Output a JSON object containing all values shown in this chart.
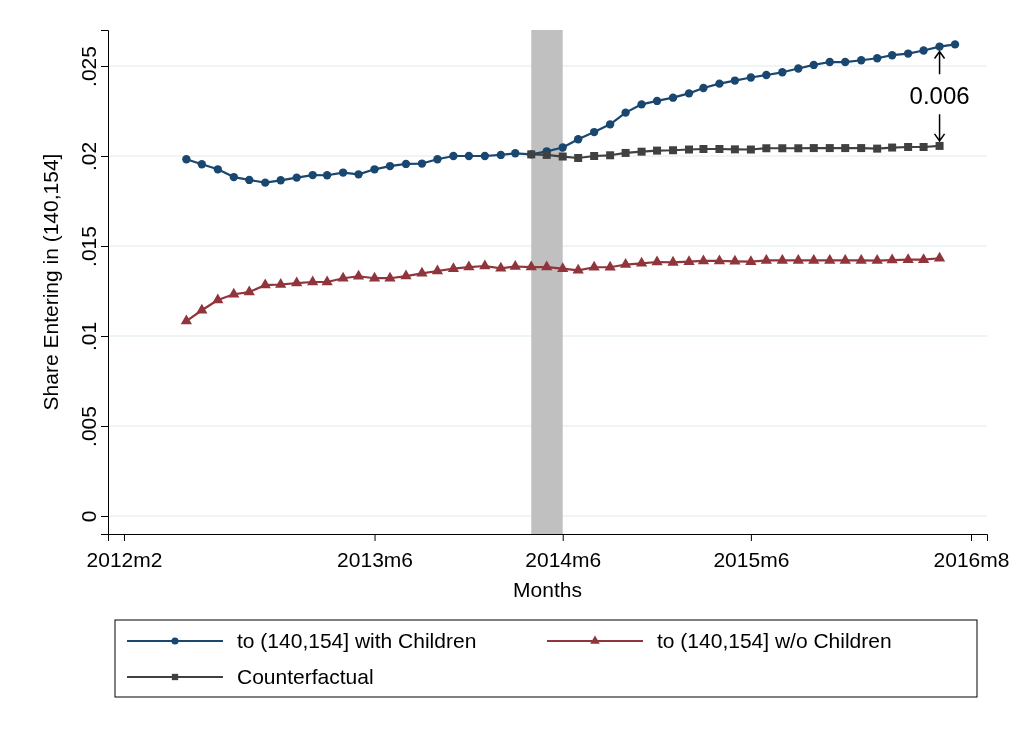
{
  "chart_data": {
    "type": "line",
    "xlabel": "Months",
    "ylabel": "Share Entering in (140,154]",
    "xlim": [
      "2012-01",
      "2016-09"
    ],
    "ylim": [
      -0.001,
      0.027
    ],
    "xticks": [
      {
        "value": "2012-02",
        "label": "2012m2"
      },
      {
        "value": "2013-06",
        "label": "2013m6"
      },
      {
        "value": "2014-06",
        "label": "2014m6"
      },
      {
        "value": "2015-06",
        "label": "2015m6"
      },
      {
        "value": "2016-08",
        "label": "2016m8"
      }
    ],
    "yticks": [
      {
        "value": 0,
        "label": "0"
      },
      {
        "value": 0.005,
        "label": ".005"
      },
      {
        "value": 0.01,
        "label": ".01"
      },
      {
        "value": 0.015,
        "label": ".015"
      },
      {
        "value": 0.02,
        "label": ".02"
      },
      {
        "value": 0.025,
        "label": ".025"
      }
    ],
    "grid": "y",
    "legend": "bottom",
    "bands": [
      {
        "axis": "x",
        "from": "2014-04",
        "to": "2014-06",
        "color": "#c0c0c0"
      }
    ],
    "annotations": [
      "0.006"
    ],
    "series": [
      {
        "name": "to (140,154] with Children",
        "color": "#1a476f",
        "marker": "circle",
        "x": [
          "2012-06",
          "2012-07",
          "2012-08",
          "2012-09",
          "2012-10",
          "2012-11",
          "2012-12",
          "2013-01",
          "2013-02",
          "2013-03",
          "2013-04",
          "2013-05",
          "2013-06",
          "2013-07",
          "2013-08",
          "2013-09",
          "2013-10",
          "2013-11",
          "2013-12",
          "2014-01",
          "2014-02",
          "2014-03",
          "2014-04",
          "2014-05",
          "2014-06",
          "2014-07",
          "2014-08",
          "2014-09",
          "2014-10",
          "2014-11",
          "2014-12",
          "2015-01",
          "2015-02",
          "2015-03",
          "2015-04",
          "2015-05",
          "2015-06",
          "2015-07",
          "2015-08",
          "2015-09",
          "2015-10",
          "2015-11",
          "2015-12",
          "2016-01",
          "2016-02",
          "2016-03",
          "2016-04",
          "2016-05",
          "2016-06",
          "2016-07"
        ],
        "values": [
          0.01982,
          0.01954,
          0.01926,
          0.01883,
          0.01867,
          0.01852,
          0.01865,
          0.0188,
          0.01894,
          0.01893,
          0.01908,
          0.01898,
          0.01926,
          0.01944,
          0.01956,
          0.01958,
          0.01982,
          0.02,
          0.02,
          0.02,
          0.02006,
          0.02015,
          0.02009,
          0.02026,
          0.02047,
          0.02093,
          0.02133,
          0.02176,
          0.02241,
          0.02287,
          0.02306,
          0.02324,
          0.02348,
          0.02378,
          0.02402,
          0.02419,
          0.02436,
          0.0245,
          0.02465,
          0.02486,
          0.02506,
          0.02522,
          0.02522,
          0.02532,
          0.02543,
          0.0256,
          0.02569,
          0.02586,
          0.02608,
          0.0262
        ]
      },
      {
        "name": "to (140,154] w/o Children",
        "color": "#90353b",
        "marker": "triangle",
        "x": [
          "2012-06",
          "2012-07",
          "2012-08",
          "2012-09",
          "2012-10",
          "2012-11",
          "2012-12",
          "2013-01",
          "2013-02",
          "2013-03",
          "2013-04",
          "2013-05",
          "2013-06",
          "2013-07",
          "2013-08",
          "2013-09",
          "2013-10",
          "2013-11",
          "2013-12",
          "2014-01",
          "2014-02",
          "2014-03",
          "2014-04",
          "2014-05",
          "2014-06",
          "2014-07",
          "2014-08",
          "2014-09",
          "2014-10",
          "2014-11",
          "2014-12",
          "2015-01",
          "2015-02",
          "2015-03",
          "2015-04",
          "2015-05",
          "2015-06",
          "2015-07",
          "2015-08",
          "2015-09",
          "2015-10",
          "2015-11",
          "2015-12",
          "2016-01",
          "2016-02",
          "2016-03",
          "2016-04",
          "2016-05",
          "2016-06"
        ],
        "values": [
          0.01083,
          0.01143,
          0.012,
          0.01232,
          0.01244,
          0.01283,
          0.01286,
          0.01294,
          0.013,
          0.013,
          0.01321,
          0.01332,
          0.01321,
          0.01321,
          0.01333,
          0.01348,
          0.01361,
          0.01374,
          0.01383,
          0.01389,
          0.01376,
          0.01386,
          0.01383,
          0.01383,
          0.01374,
          0.01365,
          0.01382,
          0.01382,
          0.01397,
          0.01404,
          0.01411,
          0.01409,
          0.01413,
          0.01417,
          0.01417,
          0.01415,
          0.01413,
          0.0142,
          0.0142,
          0.0142,
          0.0142,
          0.0142,
          0.0142,
          0.0142,
          0.01419,
          0.01422,
          0.01424,
          0.01424,
          0.01432
        ]
      },
      {
        "name": "Counterfactual",
        "color": "#404040",
        "marker": "square",
        "x": [
          "2014-04",
          "2014-05",
          "2014-06",
          "2014-07",
          "2014-08",
          "2014-09",
          "2014-10",
          "2014-11",
          "2014-12",
          "2015-01",
          "2015-02",
          "2015-03",
          "2015-04",
          "2015-05",
          "2015-06",
          "2015-07",
          "2015-08",
          "2015-09",
          "2015-10",
          "2015-11",
          "2015-12",
          "2016-01",
          "2016-02",
          "2016-03",
          "2016-04",
          "2016-05",
          "2016-06"
        ],
        "values": [
          0.02009,
          0.02006,
          0.01997,
          0.01989,
          0.02,
          0.02004,
          0.02017,
          0.02024,
          0.0203,
          0.02032,
          0.02036,
          0.02039,
          0.02039,
          0.02037,
          0.02036,
          0.02043,
          0.02043,
          0.02043,
          0.02044,
          0.02044,
          0.02044,
          0.02044,
          0.02041,
          0.02047,
          0.0205,
          0.0205,
          0.02056
        ]
      }
    ]
  }
}
